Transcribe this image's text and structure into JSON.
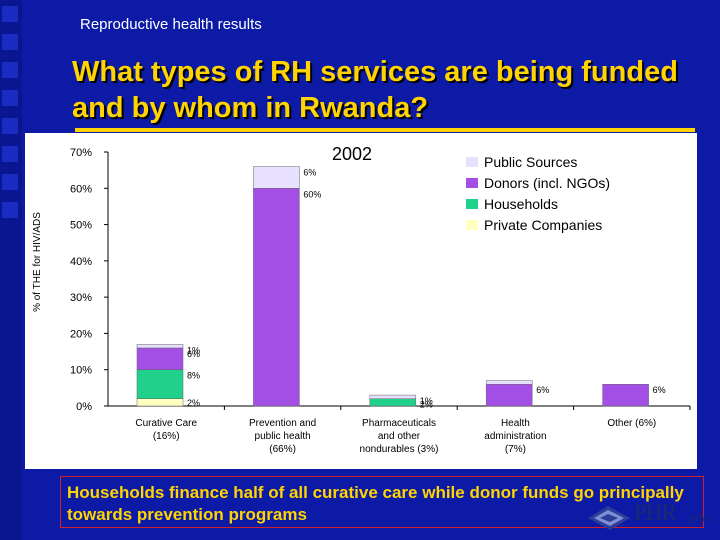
{
  "header": {
    "section_label": "Reproductive health results",
    "title": "What types of RH services are being funded and by whom in Rwanda?"
  },
  "footer": {
    "text": "Households finance half of all curative care while donor funds go principally towards prevention programs"
  },
  "logo": {
    "word": "PHR",
    "suffix": "plus"
  },
  "colors": {
    "background": "#0c1aa6",
    "title": "#ffd400",
    "plot_background": "#ffffff",
    "footer_border": "#d0202a"
  },
  "chart_data": {
    "type": "bar",
    "stacked": true,
    "title": "2002",
    "ylabel": "% of THE for HIV/ADS",
    "xlabel": "",
    "ylim": [
      0,
      70
    ],
    "yticks": [
      "0%",
      "10%",
      "20%",
      "30%",
      "40%",
      "50%",
      "60%",
      "70%"
    ],
    "grid": false,
    "legend_position": "top-right",
    "categories": [
      [
        "Curative Care",
        "(16%)"
      ],
      [
        "Prevention and",
        "public health",
        "(66%)"
      ],
      [
        "Pharmaceuticals",
        "and other",
        "nondurables (3%)"
      ],
      [
        "Health",
        "administration",
        "(7%)"
      ],
      [
        "Other (6%)"
      ]
    ],
    "series": [
      {
        "name": "Private Companies",
        "color": "#ffffc0",
        "values": [
          2,
          0,
          0,
          0,
          0
        ],
        "labels": [
          "2%",
          "",
          "",
          "",
          ""
        ]
      },
      {
        "name": "Households",
        "color": "#1fd18a",
        "values": [
          8,
          0,
          2,
          0,
          0
        ],
        "labels": [
          "8%",
          "",
          "2%",
          "",
          ""
        ]
      },
      {
        "name": "Donors (incl. NGOs)",
        "color": "#a34fe6",
        "values": [
          6,
          60,
          0,
          6,
          6
        ],
        "labels": [
          "6%",
          "60%",
          "",
          "6%",
          "6%"
        ]
      },
      {
        "name": "Public Sources",
        "color": "#e8e0ff",
        "values": [
          1,
          6,
          1,
          1,
          0
        ],
        "labels": [
          "1%",
          "6%",
          "1%",
          "",
          ""
        ]
      }
    ]
  }
}
